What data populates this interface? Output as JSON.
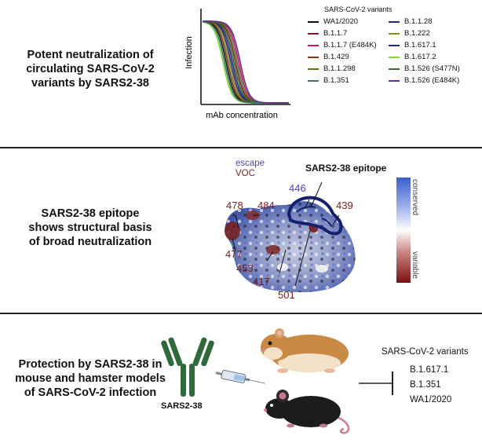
{
  "panel1": {
    "title_lines": [
      "Potent neutralization of",
      "circulating SARS-CoV-2",
      "variants by SARS2-38"
    ],
    "y_axis_label": "Infection",
    "x_axis_label": "mAb concentration",
    "legend_title": "SARS-CoV-2 variants",
    "legend": [
      {
        "name": "WA1/2020",
        "color": "#111111"
      },
      {
        "name": "B.1.1.28",
        "color": "#1c2a7a"
      },
      {
        "name": "B.1.1.7",
        "color": "#7a1e24"
      },
      {
        "name": "B.1.222",
        "color": "#8a8a1a"
      },
      {
        "name": "B.1.1.7 (E484K)",
        "color": "#c2186b"
      },
      {
        "name": "B.1.617.1",
        "color": "#27277a"
      },
      {
        "name": "B.1.429",
        "color": "#7a3a18"
      },
      {
        "name": "B.1.617.2",
        "color": "#86d43a"
      },
      {
        "name": "B.1.1.298",
        "color": "#4a7a2a"
      },
      {
        "name": "B.1.526 (S477N)",
        "color": "#3f6a28"
      },
      {
        "name": "B.1.351",
        "color": "#2f7a6a"
      },
      {
        "name": "B.1.526 (E484K)",
        "color": "#6a2a8a"
      }
    ]
  },
  "panel2": {
    "title_lines": [
      "SARS2-38 epitope",
      "shows structural basis",
      "of broad neutralization"
    ],
    "key_escape": "escape",
    "key_voc": "VOC",
    "epitope_label": "SARS2-38 epitope",
    "residues": [
      {
        "id": "478",
        "color": "#7a1e1e"
      },
      {
        "id": "484",
        "color": "#7a1e1e"
      },
      {
        "id": "446",
        "color": "#5b3db5"
      },
      {
        "id": "439",
        "color": "#7a1e1e"
      },
      {
        "id": "477",
        "color": "#7a1e1e"
      },
      {
        "id": "453",
        "color": "#7a1e1e"
      },
      {
        "id": "417",
        "color": "#7a1e1e"
      },
      {
        "id": "501",
        "color": "#7a1e1e"
      }
    ],
    "colorbar_top": "conserved",
    "colorbar_bottom": "variable"
  },
  "panel3": {
    "title_lines": [
      "Protection by SARS2-38 in",
      "mouse and hamster models",
      "of SARS-CoV-2 infection"
    ],
    "antibody_label": "SARS2-38",
    "variants_title": "SARS-CoV-2 variants",
    "variants": [
      "B.1.617.1",
      "B.1.351",
      "WA1/2020"
    ]
  }
}
